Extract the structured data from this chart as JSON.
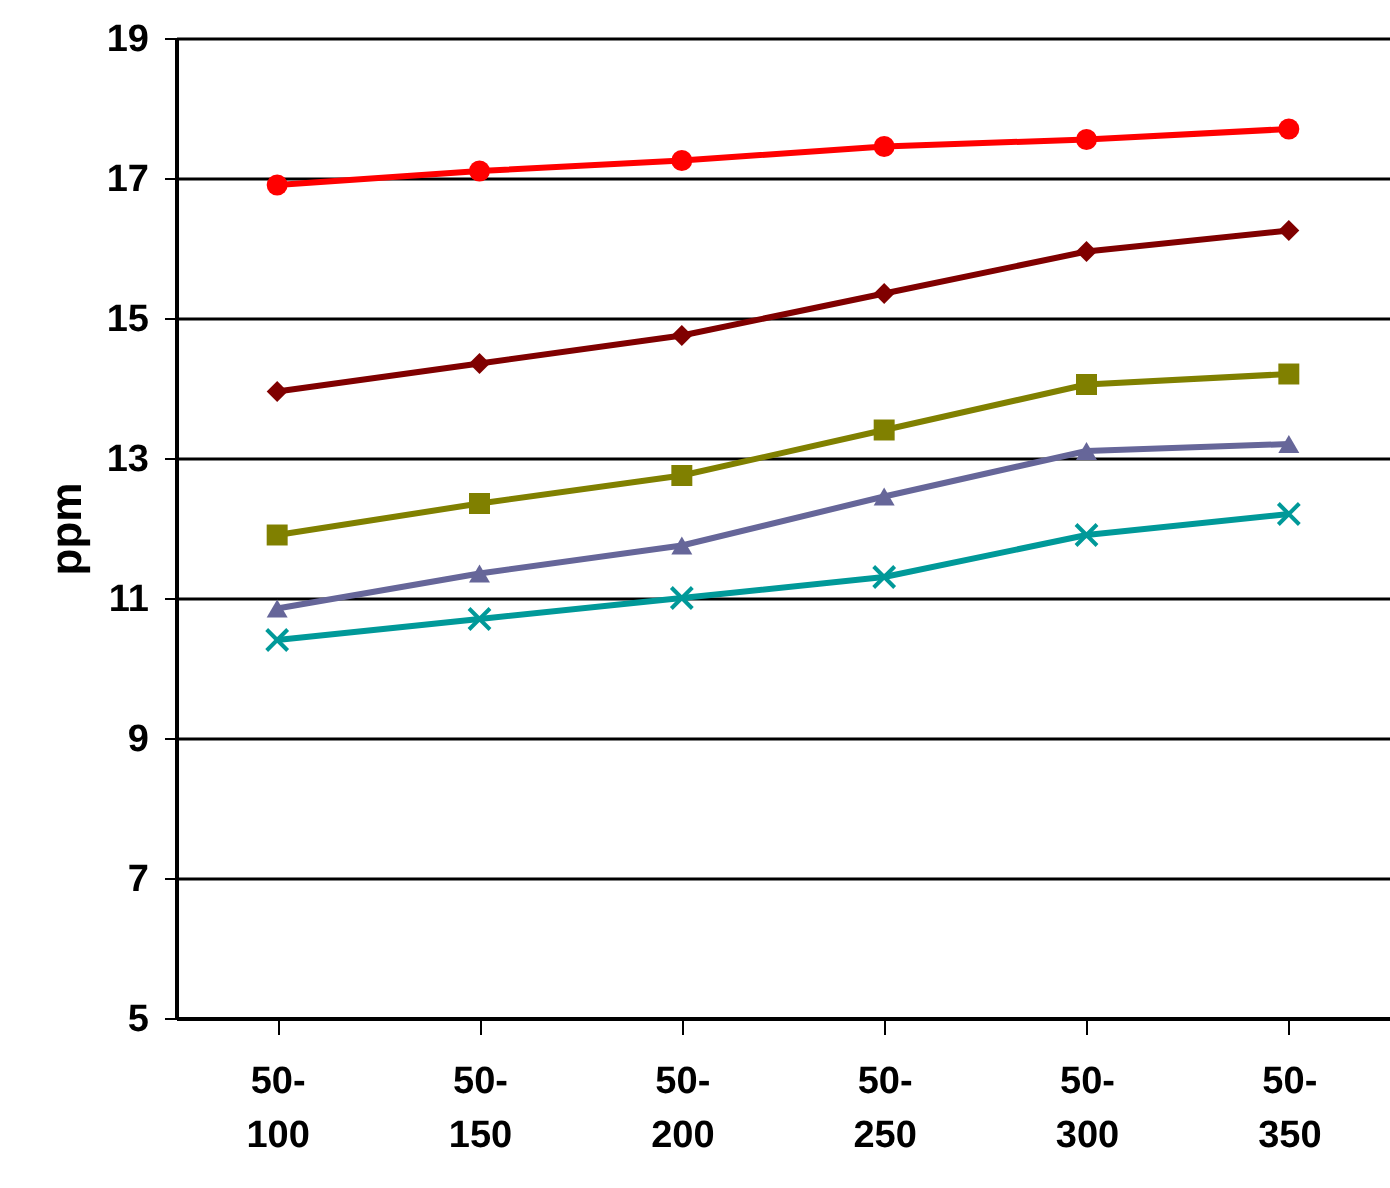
{
  "chart_data": {
    "type": "line",
    "ylabel": "ppm",
    "categories": [
      "50-100",
      "50-150",
      "50-200",
      "50-250",
      "50-300",
      "50-350"
    ],
    "ylim": [
      5,
      19
    ],
    "yticks": [
      5,
      7,
      9,
      11,
      13,
      15,
      17,
      19
    ],
    "grid": "y",
    "line_style": "solid",
    "series": [
      {
        "color": "#ff0000",
        "marker": "circle",
        "values": [
          16.9,
          17.1,
          17.25,
          17.45,
          17.55,
          17.7
        ]
      },
      {
        "color": "#800000",
        "marker": "diamond",
        "values": [
          13.95,
          14.35,
          14.75,
          15.35,
          15.95,
          16.25
        ]
      },
      {
        "color": "#808000",
        "marker": "square",
        "values": [
          11.9,
          12.35,
          12.75,
          13.4,
          14.05,
          14.2
        ]
      },
      {
        "color": "#666699",
        "marker": "triangle",
        "values": [
          10.85,
          11.35,
          11.75,
          12.45,
          13.1,
          13.2
        ]
      },
      {
        "color": "#009999",
        "marker": "cross",
        "values": [
          10.4,
          10.7,
          11.0,
          11.3,
          11.9,
          12.2
        ]
      }
    ]
  }
}
